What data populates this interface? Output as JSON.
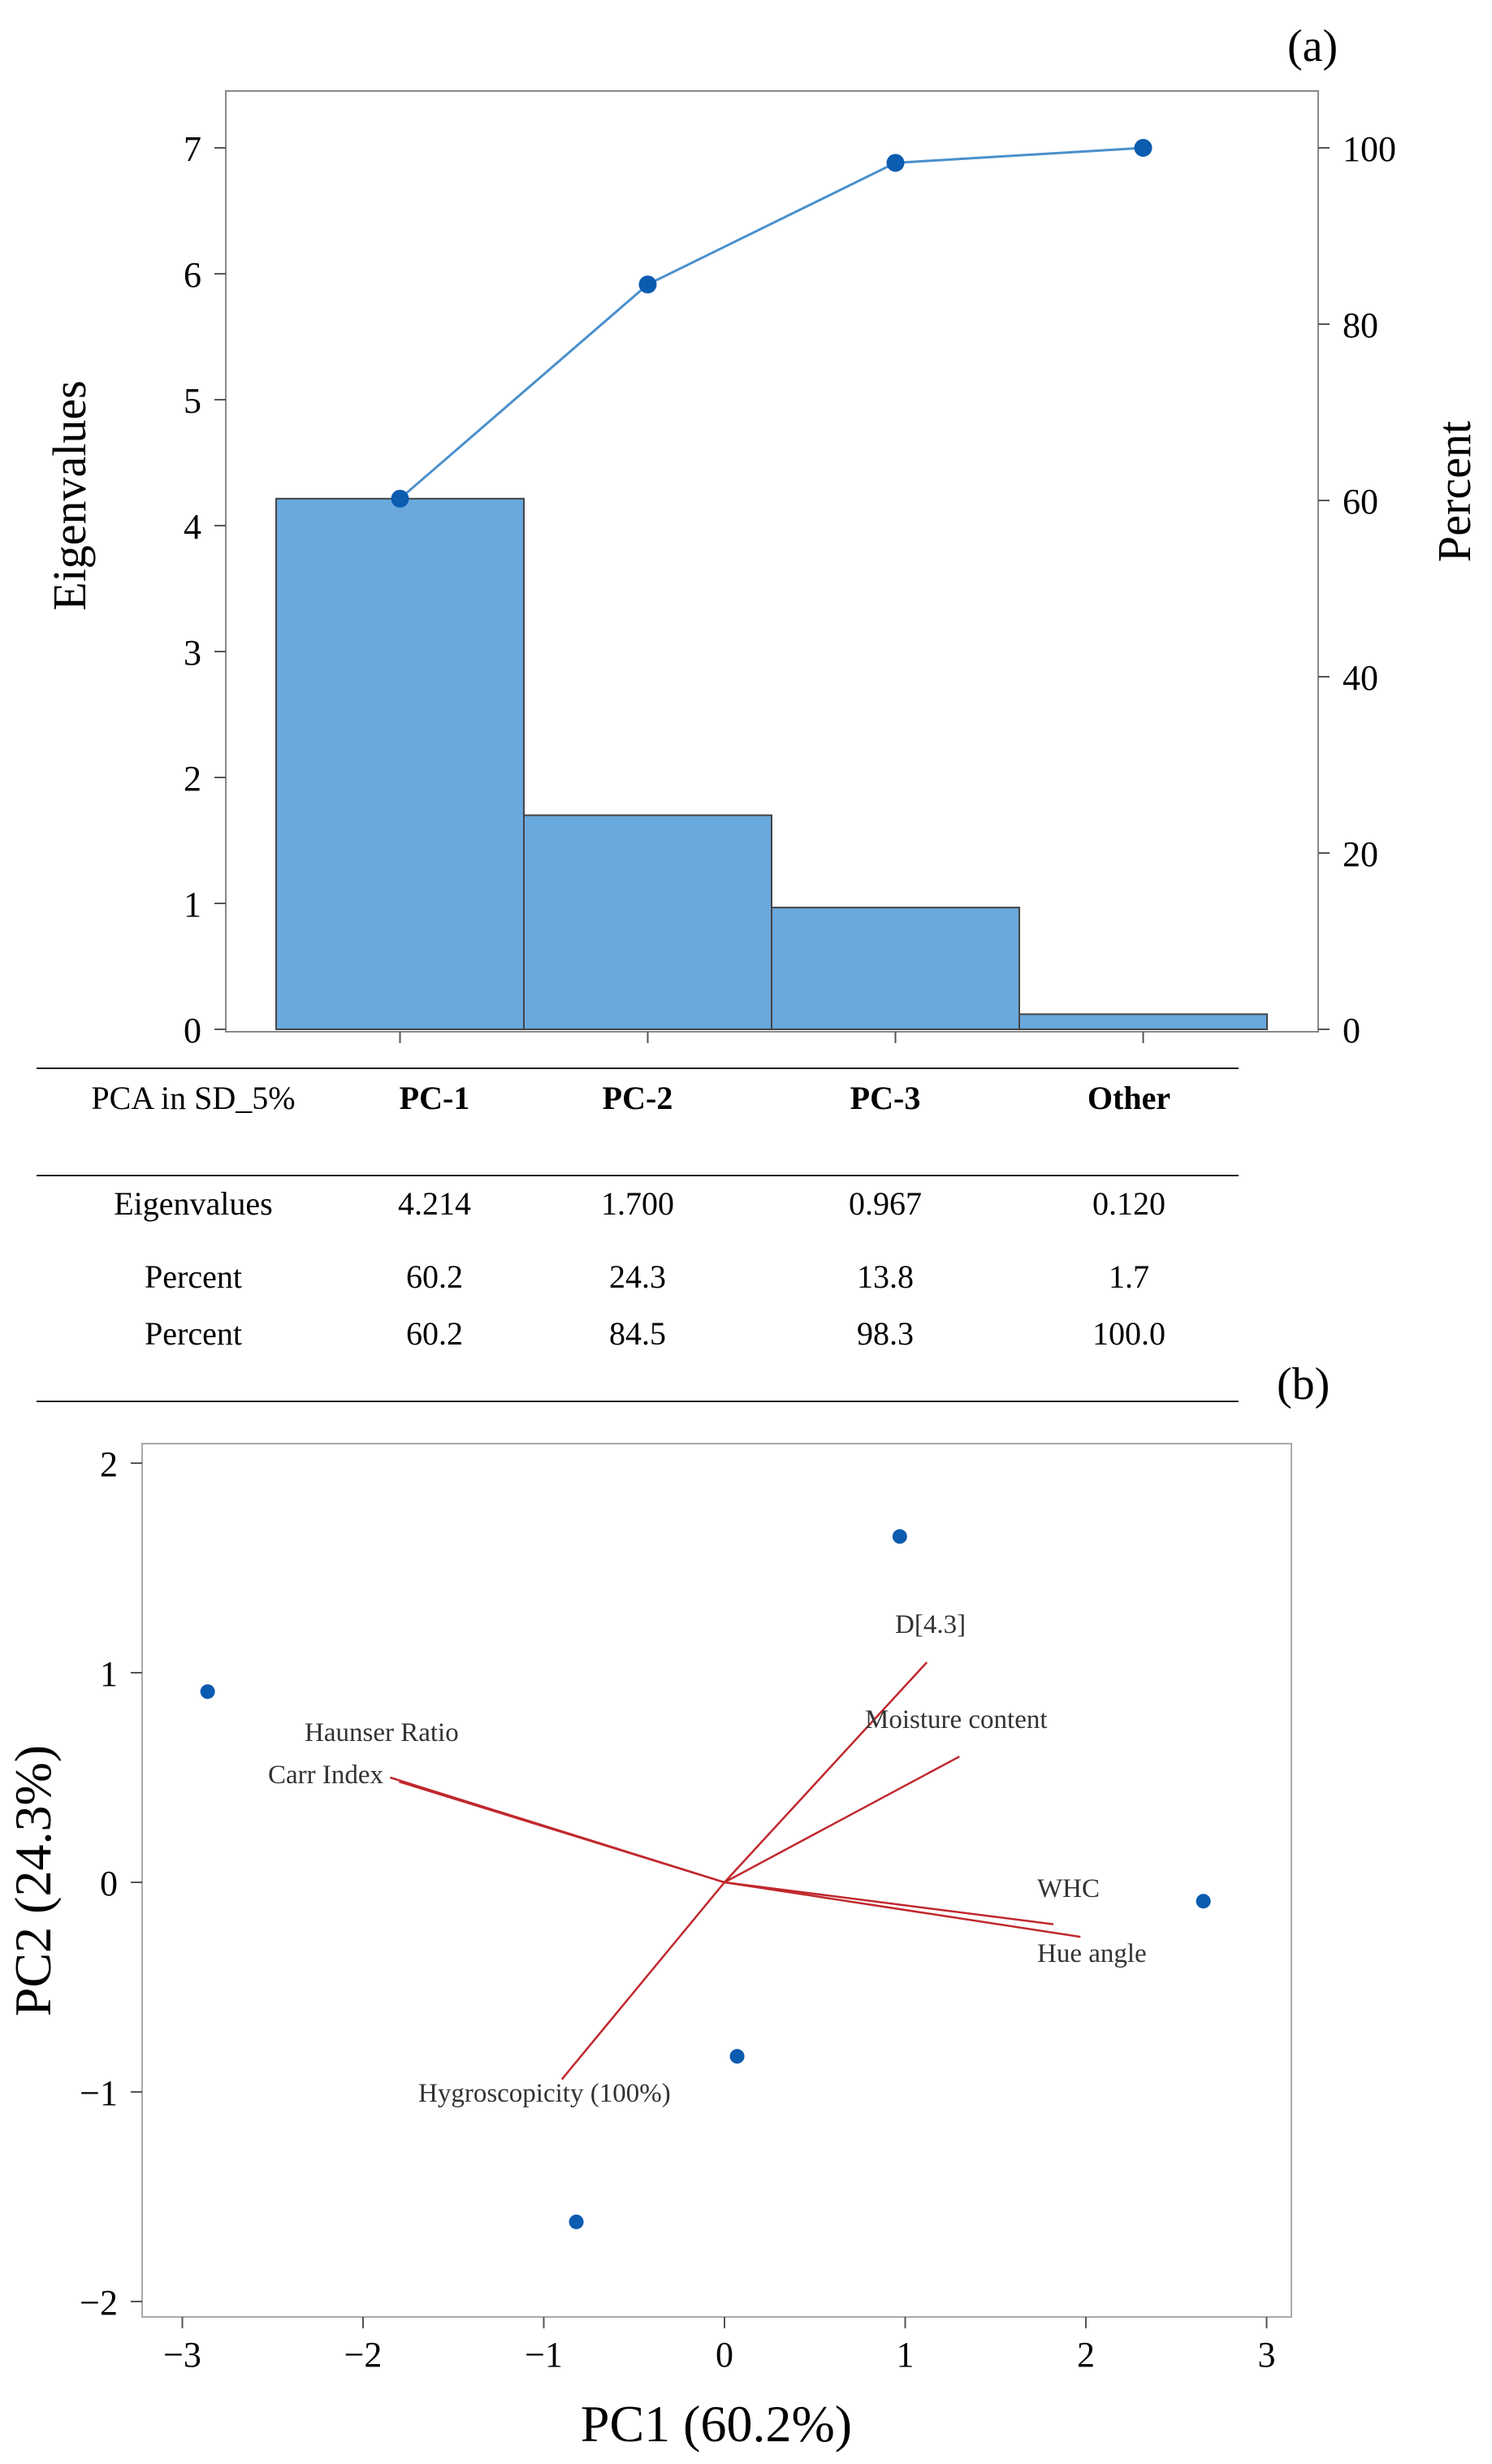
{
  "panel_a": {
    "label": "(a)",
    "chart_data": {
      "type": "bar",
      "categories": [
        "PC-1",
        "PC-2",
        "PC-3",
        "Other"
      ],
      "values": [
        4.214,
        1.7,
        0.967,
        0.12
      ],
      "ylabel": "Eigenvalues",
      "y2label": "Percent",
      "ylim": [
        0,
        7
      ],
      "y2lim": [
        0,
        100
      ],
      "yticks": [
        0,
        1,
        2,
        3,
        4,
        5,
        6,
        7
      ],
      "y2ticks": [
        0,
        20,
        40,
        60,
        80,
        100
      ],
      "cumulative_percent": [
        60.2,
        84.5,
        98.3,
        100.0
      ],
      "bar_color": "#6aa9dd",
      "line_color": "#4a90cc",
      "marker_color": "#0b5bb0"
    }
  },
  "table": {
    "header": [
      "PCA in SD_5%",
      "PC-1",
      "PC-2",
      "PC-3",
      "Other"
    ],
    "rows": [
      [
        "Eigenvalues",
        "4.214",
        "1.700",
        "0.967",
        "0.120"
      ],
      [
        "Percent",
        "60.2",
        "24.3",
        "13.8",
        "1.7"
      ],
      [
        "Percent",
        "60.2",
        "84.5",
        "98.3",
        "100.0"
      ]
    ]
  },
  "panel_b": {
    "label": "(b)",
    "chart_data": {
      "type": "scatter",
      "xlabel": "PC1 (60.2%)",
      "ylabel": "PC2 (24.3%)",
      "xlim": [
        -3.2,
        3.1
      ],
      "ylim": [
        -2.1,
        2.1
      ],
      "xticks": [
        -3,
        -2,
        -1,
        0,
        1,
        2,
        3
      ],
      "yticks": [
        -2,
        -1,
        0,
        1,
        2
      ],
      "point_color": "#0b5bb0",
      "vector_color": "#c0282d",
      "points": [
        {
          "x": -2.86,
          "y": 0.91
        },
        {
          "x": 0.97,
          "y": 1.65
        },
        {
          "x": 2.65,
          "y": -0.09
        },
        {
          "x": 0.07,
          "y": -0.83
        },
        {
          "x": -0.82,
          "y": -1.62
        }
      ],
      "loadings": [
        {
          "name": "D[4.3]",
          "x": 1.12,
          "y": 1.05
        },
        {
          "name": "Moisture content",
          "x": 1.3,
          "y": 0.6
        },
        {
          "name": "Haunser Ratio",
          "x": -1.85,
          "y": 0.5
        },
        {
          "name": "Carr Index",
          "x": -1.8,
          "y": 0.48
        },
        {
          "name": "WHC",
          "x": 1.82,
          "y": -0.2
        },
        {
          "name": "Hue angle",
          "x": 1.97,
          "y": -0.26
        },
        {
          "name": "Hygroscopicity (100%)",
          "x": -0.9,
          "y": -0.94
        }
      ]
    }
  }
}
